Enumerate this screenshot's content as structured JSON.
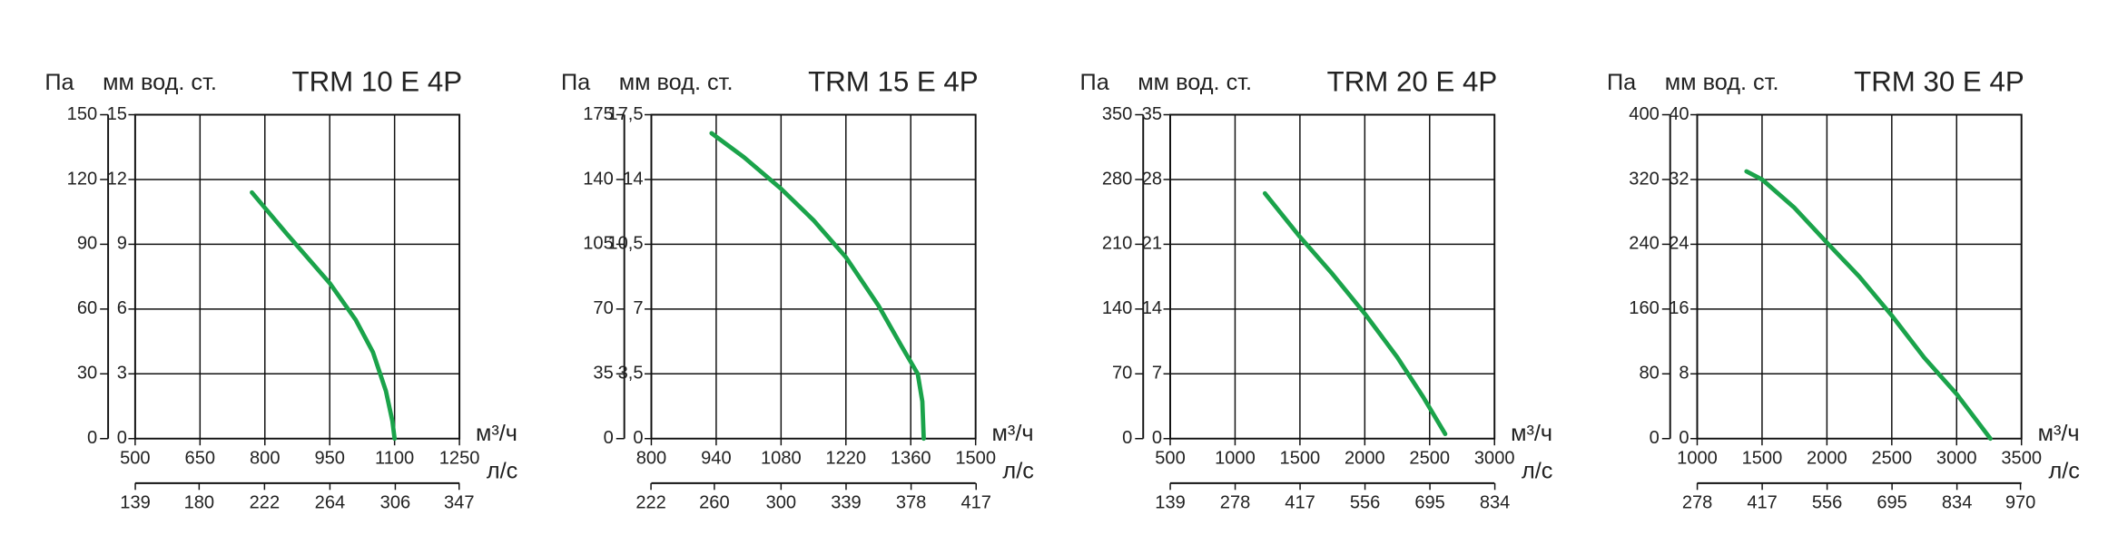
{
  "chart_data": [
    {
      "type": "line",
      "title": "TRM 10 E 4P",
      "ylabel": "Па",
      "y2label": "мм вод. ст.",
      "xlabel": "м³/ч",
      "x2label": "л/с",
      "xlim": [
        500,
        1250
      ],
      "xticks": [
        500,
        650,
        800,
        950,
        1100,
        1250
      ],
      "x2lim": [
        138.9,
        347.2
      ],
      "x2ticks": [
        139,
        180,
        222,
        264,
        306,
        347
      ],
      "ylim": [
        0,
        150
      ],
      "yticks": [
        0,
        30,
        60,
        90,
        120,
        150
      ],
      "y2lim": [
        0,
        15
      ],
      "y2ticks": [
        0,
        3,
        6,
        9,
        12,
        15
      ],
      "grid": true,
      "x": [
        770,
        850,
        950,
        1010,
        1050,
        1080,
        1095,
        1100
      ],
      "series": [
        {
          "name": "TRM 10 E 4P",
          "color": "#1aa34a",
          "values": [
            114,
            95,
            72,
            55,
            40,
            22,
            8,
            0
          ]
        }
      ]
    },
    {
      "type": "line",
      "title": "TRM 15 E 4P",
      "ylabel": "Па",
      "y2label": "мм вод. ст.",
      "xlabel": "м³/ч",
      "x2label": "л/с",
      "xlim": [
        800,
        1500
      ],
      "xticks": [
        800,
        940,
        1080,
        1220,
        1360,
        1500
      ],
      "x2lim": [
        222.2,
        416.7
      ],
      "x2ticks": [
        222,
        260,
        300,
        339,
        378,
        417
      ],
      "ylim": [
        0,
        175
      ],
      "yticks": [
        0,
        35,
        70,
        105,
        140,
        175
      ],
      "y2lim": [
        0,
        17.5
      ],
      "y2ticks": [
        0,
        {
          "value": 3.5,
          "label": "3,5"
        },
        7,
        {
          "value": 10.5,
          "label": "10,5"
        },
        14,
        {
          "value": 17.5,
          "label": "17,5"
        }
      ],
      "grid": true,
      "x": [
        930,
        1000,
        1080,
        1150,
        1220,
        1290,
        1340,
        1375,
        1385,
        1388
      ],
      "series": [
        {
          "name": "TRM 15 E 4P",
          "color": "#1aa34a",
          "values": [
            165,
            152,
            135,
            118,
            98,
            72,
            50,
            35,
            20,
            0
          ]
        }
      ]
    },
    {
      "type": "line",
      "title": "TRM 20 E 4P",
      "ylabel": "Па",
      "y2label": "мм вод. ст.",
      "xlabel": "м³/ч",
      "x2label": "л/с",
      "xlim": [
        500,
        3000
      ],
      "xticks": [
        500,
        1000,
        1500,
        2000,
        2500,
        3000
      ],
      "x2lim": [
        138.9,
        833.3
      ],
      "x2ticks": [
        139,
        278,
        417,
        556,
        695,
        834
      ],
      "ylim": [
        0,
        350
      ],
      "yticks": [
        0,
        70,
        140,
        210,
        280,
        350
      ],
      "y2lim": [
        0,
        35
      ],
      "y2ticks": [
        0,
        7,
        14,
        21,
        28,
        35
      ],
      "grid": true,
      "x": [
        1230,
        1500,
        1750,
        2000,
        2250,
        2450,
        2620
      ],
      "series": [
        {
          "name": "TRM 20 E 4P",
          "color": "#1aa34a",
          "values": [
            265,
            218,
            178,
            135,
            88,
            45,
            5
          ]
        }
      ]
    },
    {
      "type": "line",
      "title": "TRM 30 E 4P",
      "ylabel": "Па",
      "y2label": "мм вод. ст.",
      "xlabel": "м³/ч",
      "x2label": "л/с",
      "xlim": [
        1000,
        3500
      ],
      "xticks": [
        1000,
        1500,
        2000,
        2500,
        3000,
        3500
      ],
      "x2lim": [
        277.8,
        972.2
      ],
      "x2ticks": [
        278,
        417,
        556,
        695,
        834,
        970
      ],
      "ylim": [
        0,
        400
      ],
      "yticks": [
        0,
        80,
        160,
        240,
        320,
        400
      ],
      "y2lim": [
        0,
        40
      ],
      "y2ticks": [
        0,
        8,
        16,
        24,
        32,
        40
      ],
      "grid": true,
      "x": [
        1380,
        1500,
        1750,
        2000,
        2250,
        2500,
        2750,
        3000,
        3260
      ],
      "series": [
        {
          "name": "TRM 30 E 4P",
          "color": "#1aa34a",
          "values": [
            330,
            320,
            285,
            242,
            200,
            152,
            100,
            55,
            0
          ]
        }
      ]
    }
  ]
}
